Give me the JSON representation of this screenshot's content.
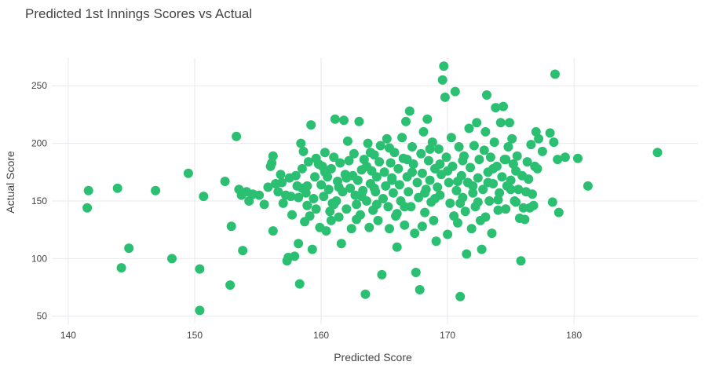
{
  "chart_data": {
    "type": "scatter",
    "title": "Predicted 1st Innings Scores vs Actual",
    "xlabel": "Predicted Score",
    "ylabel": "Actual Score",
    "xlim": [
      138.7,
      189.8
    ],
    "ylim": [
      43,
      274
    ],
    "xticks": [
      140,
      150,
      160,
      170,
      180
    ],
    "yticks": [
      50,
      100,
      150,
      200,
      250
    ],
    "grid": true,
    "marker_color": "#2bbf72",
    "points": [
      [
        141.6,
        159
      ],
      [
        141.5,
        144
      ],
      [
        143.9,
        161
      ],
      [
        144.2,
        92
      ],
      [
        144.8,
        109
      ],
      [
        146.9,
        159
      ],
      [
        148.2,
        100
      ],
      [
        149.5,
        174
      ],
      [
        150.4,
        91
      ],
      [
        150.4,
        55
      ],
      [
        150.7,
        154
      ],
      [
        152.4,
        167
      ],
      [
        152.8,
        77
      ],
      [
        152.9,
        128
      ],
      [
        153.3,
        206
      ],
      [
        153.5,
        160
      ],
      [
        153.7,
        155
      ],
      [
        153.8,
        107
      ],
      [
        154.1,
        158
      ],
      [
        154.3,
        150
      ],
      [
        154.6,
        156
      ],
      [
        155.1,
        155
      ],
      [
        155.5,
        147
      ],
      [
        155.8,
        162
      ],
      [
        156.0,
        180
      ],
      [
        156.1,
        183
      ],
      [
        156.2,
        189
      ],
      [
        156.2,
        124
      ],
      [
        156.4,
        165
      ],
      [
        156.6,
        158
      ],
      [
        156.8,
        173
      ],
      [
        157.0,
        148
      ],
      [
        157.2,
        155
      ],
      [
        157.3,
        98
      ],
      [
        157.4,
        101
      ],
      [
        157.5,
        170
      ],
      [
        157.7,
        138
      ],
      [
        157.9,
        102
      ],
      [
        158.0,
        172
      ],
      [
        158.1,
        163
      ],
      [
        158.2,
        153
      ],
      [
        158.2,
        113
      ],
      [
        158.3,
        78
      ],
      [
        158.4,
        200
      ],
      [
        158.5,
        178
      ],
      [
        158.6,
        193
      ],
      [
        158.7,
        132
      ],
      [
        158.8,
        157
      ],
      [
        158.9,
        163
      ],
      [
        159.0,
        184
      ],
      [
        159.1,
        137
      ],
      [
        159.2,
        216
      ],
      [
        159.3,
        108
      ],
      [
        159.4,
        152
      ],
      [
        159.5,
        171
      ],
      [
        159.6,
        143
      ],
      [
        159.8,
        182
      ],
      [
        159.9,
        127
      ],
      [
        160.0,
        164
      ],
      [
        160.1,
        180
      ],
      [
        160.2,
        154
      ],
      [
        160.3,
        192
      ],
      [
        160.4,
        124
      ],
      [
        160.5,
        171
      ],
      [
        160.6,
        160
      ],
      [
        160.7,
        141
      ],
      [
        160.8,
        178
      ],
      [
        160.9,
        148
      ],
      [
        161.0,
        188
      ],
      [
        161.1,
        221
      ],
      [
        161.2,
        150
      ],
      [
        161.3,
        167
      ],
      [
        161.4,
        136
      ],
      [
        161.5,
        183
      ],
      [
        161.6,
        113
      ],
      [
        161.7,
        158
      ],
      [
        161.8,
        220
      ],
      [
        161.9,
        173
      ],
      [
        162.0,
        143
      ],
      [
        162.1,
        202
      ],
      [
        162.2,
        185
      ],
      [
        162.3,
        161
      ],
      [
        162.4,
        126
      ],
      [
        162.5,
        172
      ],
      [
        162.6,
        191
      ],
      [
        162.7,
        155
      ],
      [
        162.8,
        147
      ],
      [
        162.9,
        168
      ],
      [
        163.0,
        219
      ],
      [
        163.1,
        138
      ],
      [
        163.2,
        177
      ],
      [
        163.3,
        159
      ],
      [
        163.4,
        186
      ],
      [
        163.5,
        69
      ],
      [
        163.6,
        150
      ],
      [
        163.7,
        200
      ],
      [
        163.8,
        127
      ],
      [
        163.9,
        165
      ],
      [
        164.0,
        176
      ],
      [
        164.1,
        142
      ],
      [
        164.2,
        190
      ],
      [
        164.3,
        158
      ],
      [
        164.4,
        171
      ],
      [
        164.5,
        133
      ],
      [
        164.6,
        184
      ],
      [
        164.7,
        198
      ],
      [
        164.8,
        86
      ],
      [
        164.9,
        152
      ],
      [
        165.0,
        175
      ],
      [
        165.1,
        163
      ],
      [
        165.2,
        204
      ],
      [
        165.3,
        145
      ],
      [
        165.4,
        126
      ],
      [
        165.5,
        183
      ],
      [
        165.6,
        170
      ],
      [
        165.7,
        157
      ],
      [
        165.8,
        192
      ],
      [
        165.9,
        137
      ],
      [
        166.0,
        110
      ],
      [
        166.1,
        178
      ],
      [
        166.2,
        164
      ],
      [
        166.3,
        150
      ],
      [
        166.4,
        205
      ],
      [
        166.5,
        187
      ],
      [
        166.6,
        129
      ],
      [
        166.7,
        219
      ],
      [
        166.8,
        171
      ],
      [
        166.9,
        158
      ],
      [
        167.0,
        228
      ],
      [
        167.1,
        145
      ],
      [
        167.2,
        197
      ],
      [
        167.3,
        182
      ],
      [
        167.4,
        122
      ],
      [
        167.5,
        88
      ],
      [
        167.6,
        166
      ],
      [
        167.7,
        153
      ],
      [
        167.8,
        73
      ],
      [
        167.9,
        191
      ],
      [
        168.0,
        174
      ],
      [
        168.1,
        210
      ],
      [
        168.2,
        140
      ],
      [
        168.3,
        160
      ],
      [
        168.4,
        221
      ],
      [
        168.5,
        185
      ],
      [
        168.6,
        168
      ],
      [
        168.7,
        149
      ],
      [
        168.8,
        201
      ],
      [
        168.9,
        133
      ],
      [
        169.0,
        178
      ],
      [
        169.1,
        115
      ],
      [
        169.2,
        162
      ],
      [
        169.3,
        195
      ],
      [
        169.4,
        155
      ],
      [
        169.5,
        173
      ],
      [
        169.6,
        255
      ],
      [
        169.7,
        267
      ],
      [
        169.8,
        240
      ],
      [
        169.9,
        188
      ],
      [
        170.0,
        121
      ],
      [
        170.1,
        166
      ],
      [
        170.2,
        148
      ],
      [
        170.3,
        205
      ],
      [
        170.4,
        180
      ],
      [
        170.5,
        137
      ],
      [
        170.6,
        245
      ],
      [
        170.7,
        159
      ],
      [
        170.8,
        131
      ],
      [
        170.9,
        197
      ],
      [
        171.0,
        67
      ],
      [
        171.1,
        172
      ],
      [
        171.2,
        153
      ],
      [
        171.3,
        189
      ],
      [
        171.4,
        141
      ],
      [
        171.5,
        104
      ],
      [
        171.6,
        166
      ],
      [
        171.7,
        213
      ],
      [
        171.8,
        179
      ],
      [
        171.9,
        126
      ],
      [
        172.0,
        157
      ],
      [
        172.1,
        198
      ],
      [
        172.2,
        145
      ],
      [
        172.3,
        218
      ],
      [
        172.4,
        170
      ],
      [
        172.5,
        186
      ],
      [
        172.6,
        133
      ],
      [
        172.7,
        108
      ],
      [
        172.8,
        160
      ],
      [
        172.9,
        194
      ],
      [
        173.0,
        210
      ],
      [
        173.1,
        242
      ],
      [
        173.2,
        175
      ],
      [
        173.3,
        150
      ],
      [
        173.4,
        188
      ],
      [
        173.5,
        122
      ],
      [
        173.6,
        165
      ],
      [
        173.7,
        201
      ],
      [
        173.8,
        231
      ],
      [
        173.9,
        180
      ],
      [
        174.0,
        142
      ],
      [
        174.1,
        157
      ],
      [
        174.2,
        218
      ],
      [
        174.3,
        171
      ],
      [
        174.4,
        232
      ],
      [
        174.5,
        186
      ],
      [
        174.6,
        143
      ],
      [
        174.7,
        163
      ],
      [
        174.8,
        197
      ],
      [
        174.9,
        218
      ],
      [
        175.0,
        168
      ],
      [
        175.1,
        204
      ],
      [
        175.2,
        182
      ],
      [
        175.3,
        150
      ],
      [
        175.4,
        176
      ],
      [
        175.5,
        189
      ],
      [
        175.6,
        160
      ],
      [
        175.7,
        135
      ],
      [
        175.8,
        98
      ],
      [
        175.9,
        172
      ],
      [
        176.0,
        144
      ],
      [
        176.1,
        134
      ],
      [
        176.2,
        158
      ],
      [
        176.3,
        184
      ],
      [
        176.4,
        169
      ],
      [
        176.5,
        144
      ],
      [
        176.6,
        199
      ],
      [
        176.7,
        156
      ],
      [
        176.8,
        146
      ],
      [
        176.9,
        180
      ],
      [
        177.0,
        210
      ],
      [
        177.1,
        178
      ],
      [
        177.2,
        204
      ],
      [
        177.5,
        193
      ],
      [
        178.1,
        209
      ],
      [
        178.3,
        149
      ],
      [
        178.4,
        201
      ],
      [
        178.5,
        260
      ],
      [
        178.7,
        186
      ],
      [
        178.8,
        140
      ],
      [
        179.3,
        188
      ],
      [
        180.3,
        187
      ],
      [
        181.1,
        163
      ],
      [
        186.6,
        192
      ],
      [
        157.6,
        154
      ],
      [
        158.9,
        146
      ],
      [
        160.3,
        175
      ],
      [
        161.4,
        162
      ],
      [
        162.8,
        134
      ],
      [
        163.6,
        180
      ],
      [
        164.2,
        161
      ],
      [
        165.4,
        196
      ],
      [
        166.6,
        145
      ],
      [
        167.2,
        175
      ],
      [
        168.0,
        128
      ],
      [
        169.0,
        152
      ],
      [
        170.0,
        176
      ],
      [
        171.0,
        148
      ],
      [
        172.0,
        163
      ],
      [
        173.0,
        136
      ],
      [
        174.0,
        151
      ],
      [
        175.0,
        160
      ],
      [
        156.9,
        166
      ],
      [
        159.6,
        187
      ],
      [
        160.8,
        133
      ],
      [
        162.0,
        170
      ],
      [
        163.2,
        154
      ],
      [
        164.4,
        147
      ],
      [
        165.6,
        168
      ],
      [
        166.8,
        186
      ],
      [
        168.2,
        157
      ],
      [
        169.4,
        182
      ],
      [
        170.8,
        167
      ],
      [
        172.4,
        149
      ],
      [
        173.6,
        178
      ],
      [
        174.6,
        186
      ],
      [
        158.5,
        161
      ],
      [
        161.0,
        147
      ],
      [
        163.9,
        192
      ],
      [
        166.0,
        139
      ],
      [
        168.6,
        195
      ],
      [
        171.2,
        185
      ],
      [
        173.2,
        166
      ],
      [
        175.4,
        149
      ]
    ]
  }
}
